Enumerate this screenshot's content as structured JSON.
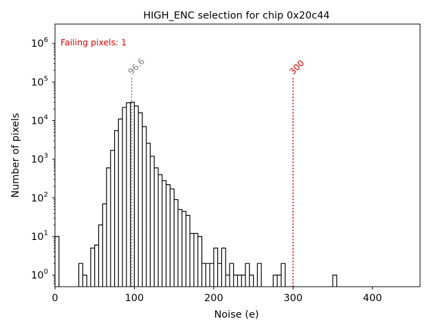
{
  "chart_data": {
    "type": "step-histogram",
    "title": "HIGH_ENC selection for chip 0x20c44",
    "xlabel": "Noise (e)",
    "ylabel": "Number of pixels",
    "xlim": [
      0,
      460
    ],
    "ylim_log10": [
      -0.3,
      6.5
    ],
    "yscale": "log",
    "grid": false,
    "x_ticks": [
      0,
      100,
      200,
      300,
      400
    ],
    "y_ticks": [
      {
        "exp": 0,
        "base": "10",
        "sup": "0"
      },
      {
        "exp": 1,
        "base": "10",
        "sup": "1"
      },
      {
        "exp": 2,
        "base": "10",
        "sup": "2"
      },
      {
        "exp": 3,
        "base": "10",
        "sup": "3"
      },
      {
        "exp": 4,
        "base": "10",
        "sup": "4"
      },
      {
        "exp": 5,
        "base": "10",
        "sup": "5"
      },
      {
        "exp": 6,
        "base": "10",
        "sup": "6"
      }
    ],
    "bin_width": 5,
    "bins": [
      [
        0,
        10
      ],
      [
        30,
        2
      ],
      [
        35,
        1
      ],
      [
        45,
        5
      ],
      [
        50,
        6
      ],
      [
        55,
        20
      ],
      [
        60,
        70
      ],
      [
        65,
        600
      ],
      [
        70,
        1700
      ],
      [
        75,
        5500
      ],
      [
        80,
        11000
      ],
      [
        85,
        22000
      ],
      [
        90,
        29000
      ],
      [
        95,
        30000
      ],
      [
        100,
        24000
      ],
      [
        105,
        16000
      ],
      [
        110,
        7000
      ],
      [
        115,
        2600
      ],
      [
        120,
        1200
      ],
      [
        125,
        600
      ],
      [
        130,
        400
      ],
      [
        135,
        280
      ],
      [
        140,
        220
      ],
      [
        145,
        170
      ],
      [
        150,
        90
      ],
      [
        155,
        50
      ],
      [
        160,
        45
      ],
      [
        165,
        35
      ],
      [
        170,
        12
      ],
      [
        175,
        12
      ],
      [
        180,
        10
      ],
      [
        185,
        2
      ],
      [
        190,
        2
      ],
      [
        195,
        2
      ],
      [
        200,
        5
      ],
      [
        205,
        2
      ],
      [
        210,
        5
      ],
      [
        215,
        1
      ],
      [
        220,
        2
      ],
      [
        225,
        1
      ],
      [
        230,
        1
      ],
      [
        235,
        1
      ],
      [
        240,
        2
      ],
      [
        245,
        1
      ],
      [
        255,
        2
      ],
      [
        275,
        1
      ],
      [
        280,
        1
      ],
      [
        285,
        2
      ],
      [
        350,
        1
      ]
    ],
    "annotations": [
      {
        "name": "peak-line",
        "x": 96.6,
        "label": "96.6",
        "color": "#808080"
      },
      {
        "name": "threshold-line",
        "x": 300,
        "label": "300",
        "color": "#e00000"
      }
    ],
    "failing_text": "Failing pixels: 1",
    "failing_color": "#e00000",
    "line_color": "#000000"
  }
}
